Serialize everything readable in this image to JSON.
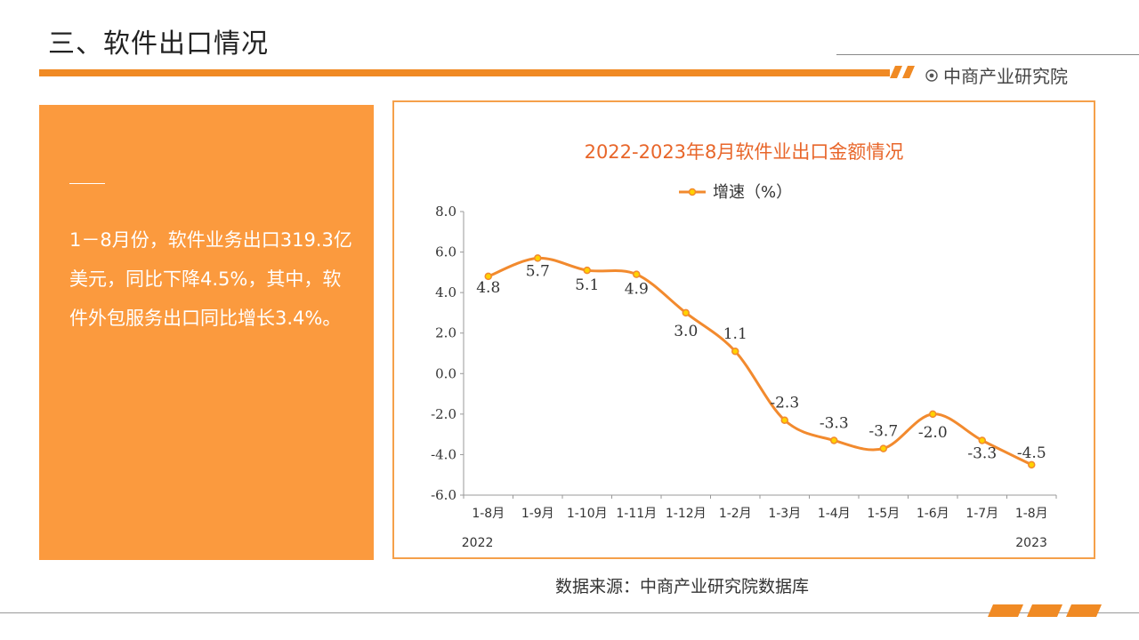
{
  "header": {
    "title": "三、软件出口情况",
    "brand": "中商产业研究院",
    "icon": "target-icon",
    "accent": "#f08a24"
  },
  "left_panel": {
    "text": "1－8月份，软件业务出口319.3亿美元，同比下降4.5%，其中，软件外包服务出口同比增长3.4%。",
    "background": "#fb9a3e"
  },
  "footer": {
    "source": "数据来源：中商产业研究院数据库"
  },
  "chart_data": {
    "type": "line",
    "title": "2022-2023年8月软件业出口金额情况",
    "categories": [
      "1-8月",
      "1-9月",
      "1-10月",
      "1-11月",
      "1-12月",
      "1-2月",
      "1-3月",
      "1-4月",
      "1-5月",
      "1-6月",
      "1-7月",
      "1-8月"
    ],
    "series": [
      {
        "name": "增速（%）",
        "values": [
          4.8,
          5.7,
          5.1,
          4.9,
          3.0,
          1.1,
          -2.3,
          -3.3,
          -3.7,
          -2.0,
          -3.3,
          -4.5
        ],
        "color": "#f28a2e"
      }
    ],
    "yticks": [
      "8.0",
      "6.0",
      "4.0",
      "2.0",
      "0.0",
      "-2.0",
      "-4.0",
      "-6.0"
    ],
    "ylim": [
      -6,
      8
    ],
    "year_labels": [
      "2022",
      "2023"
    ],
    "legend_position": "top-center",
    "grid": false
  }
}
